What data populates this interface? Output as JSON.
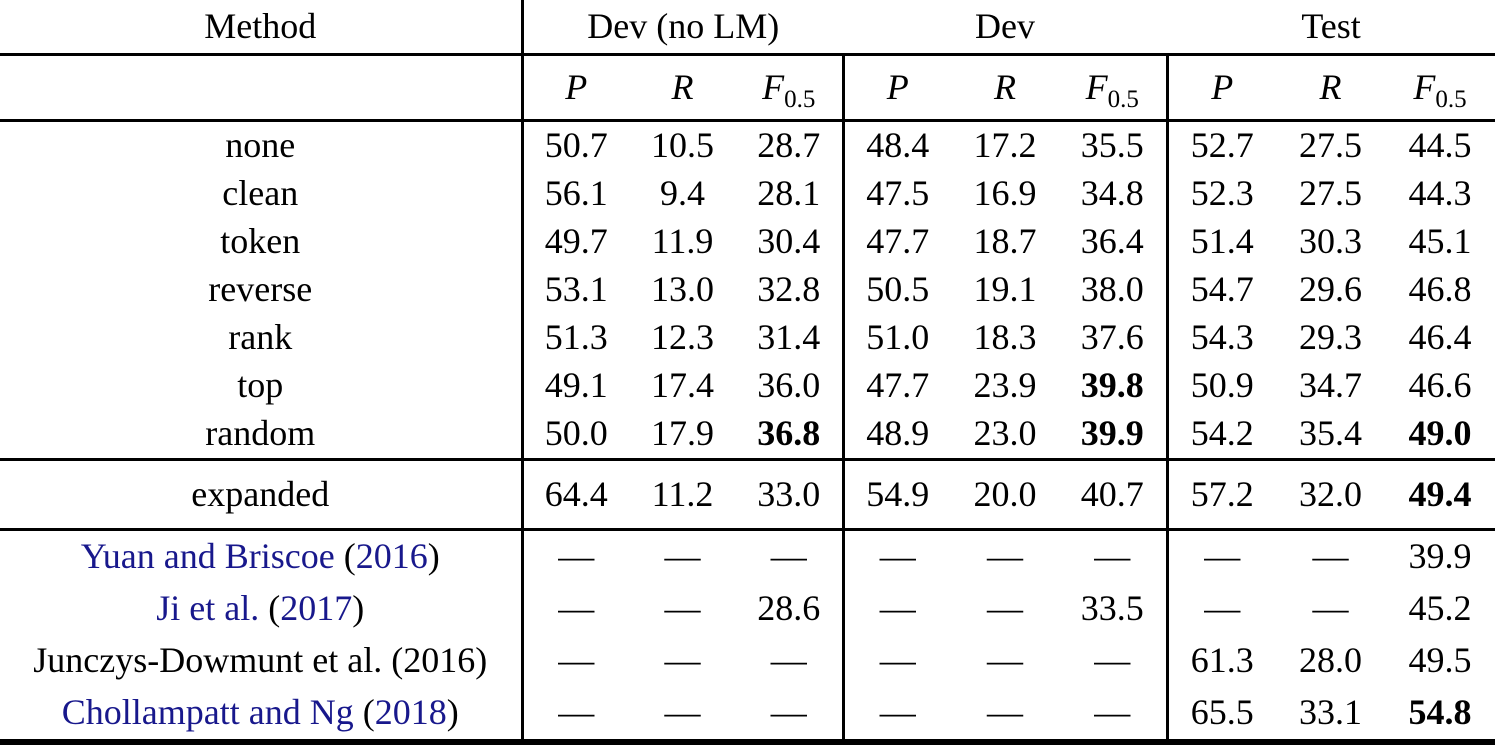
{
  "table": {
    "link_color": "#18188C",
    "text_color": "#000000",
    "method_header": "Method",
    "col_groups": [
      {
        "label": "Dev (no LM)"
      },
      {
        "label": "Dev"
      },
      {
        "label": "Test"
      }
    ],
    "metric_headers": [
      {
        "symbol": "P",
        "subscript": ""
      },
      {
        "symbol": "R",
        "subscript": ""
      },
      {
        "symbol": "F",
        "subscript": "0.5"
      }
    ],
    "sections": [
      {
        "name": "augmentation-methods",
        "rows": [
          {
            "label_parts": [
              {
                "text": "none",
                "link": false
              }
            ],
            "cells": [
              "50.7",
              "10.5",
              "28.7",
              "48.4",
              "17.2",
              "35.5",
              "52.7",
              "27.5",
              "44.5"
            ],
            "bold": []
          },
          {
            "label_parts": [
              {
                "text": "clean",
                "link": false
              }
            ],
            "cells": [
              "56.1",
              "9.4",
              "28.1",
              "47.5",
              "16.9",
              "34.8",
              "52.3",
              "27.5",
              "44.3"
            ],
            "bold": []
          },
          {
            "label_parts": [
              {
                "text": "token",
                "link": false
              }
            ],
            "cells": [
              "49.7",
              "11.9",
              "30.4",
              "47.7",
              "18.7",
              "36.4",
              "51.4",
              "30.3",
              "45.1"
            ],
            "bold": []
          },
          {
            "label_parts": [
              {
                "text": "reverse",
                "link": false
              }
            ],
            "cells": [
              "53.1",
              "13.0",
              "32.8",
              "50.5",
              "19.1",
              "38.0",
              "54.7",
              "29.6",
              "46.8"
            ],
            "bold": []
          },
          {
            "label_parts": [
              {
                "text": "rank",
                "link": false
              }
            ],
            "cells": [
              "51.3",
              "12.3",
              "31.4",
              "51.0",
              "18.3",
              "37.6",
              "54.3",
              "29.3",
              "46.4"
            ],
            "bold": []
          },
          {
            "label_parts": [
              {
                "text": "top",
                "link": false
              }
            ],
            "cells": [
              "49.1",
              "17.4",
              "36.0",
              "47.7",
              "23.9",
              "39.8",
              "50.9",
              "34.7",
              "46.6"
            ],
            "bold": [
              5
            ]
          },
          {
            "label_parts": [
              {
                "text": "random",
                "link": false
              }
            ],
            "cells": [
              "50.0",
              "17.9",
              "36.8",
              "48.9",
              "23.0",
              "39.9",
              "54.2",
              "35.4",
              "49.0"
            ],
            "bold": [
              2,
              5,
              8
            ]
          }
        ]
      },
      {
        "name": "expanded",
        "rows": [
          {
            "label_parts": [
              {
                "text": "expanded",
                "link": false
              }
            ],
            "cells": [
              "64.4",
              "11.2",
              "33.0",
              "54.9",
              "20.0",
              "40.7",
              "57.2",
              "32.0",
              "49.4"
            ],
            "bold": [
              8
            ]
          }
        ]
      },
      {
        "name": "prior-work",
        "rows": [
          {
            "label_parts": [
              {
                "text": "Yuan and Briscoe",
                "link": true
              },
              {
                "text": " (",
                "link": false
              },
              {
                "text": "2016",
                "link": true
              },
              {
                "text": ")",
                "link": false
              }
            ],
            "cells": [
              "—",
              "—",
              "—",
              "—",
              "—",
              "—",
              "—",
              "—",
              "39.9"
            ],
            "bold": []
          },
          {
            "label_parts": [
              {
                "text": "Ji et al.",
                "link": true
              },
              {
                "text": " (",
                "link": false
              },
              {
                "text": "2017",
                "link": true
              },
              {
                "text": ")",
                "link": false
              }
            ],
            "cells": [
              "—",
              "—",
              "28.6",
              "—",
              "—",
              "33.5",
              "—",
              "—",
              "45.2"
            ],
            "bold": []
          },
          {
            "label_parts": [
              {
                "text": "Junczys-Dowmunt et al. (2016)",
                "link": false
              }
            ],
            "cells": [
              "—",
              "—",
              "—",
              "—",
              "—",
              "—",
              "61.3",
              "28.0",
              "49.5"
            ],
            "bold": []
          },
          {
            "label_parts": [
              {
                "text": "Chollampatt and Ng",
                "link": true
              },
              {
                "text": " (",
                "link": false
              },
              {
                "text": "2018",
                "link": true
              },
              {
                "text": ")",
                "link": false
              }
            ],
            "cells": [
              "—",
              "—",
              "—",
              "—",
              "—",
              "—",
              "65.5",
              "33.1",
              "54.8"
            ],
            "bold": [
              8
            ]
          }
        ]
      }
    ]
  }
}
